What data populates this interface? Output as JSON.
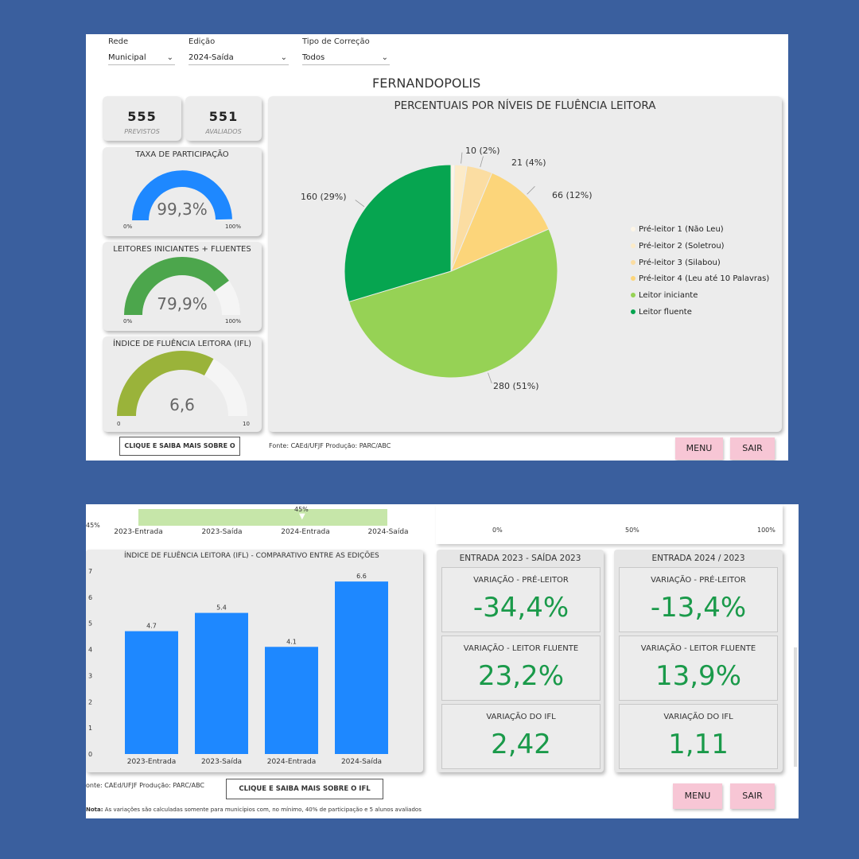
{
  "filters": [
    {
      "label": "Rede",
      "value": "Municipal"
    },
    {
      "label": "Edição",
      "value": "2024-Saída"
    },
    {
      "label": "Tipo de Correção",
      "value": "Todos"
    }
  ],
  "city": "FERNANDOPOLIS",
  "stats": {
    "previstos_value": "555",
    "previstos_label": "PREVISTOS",
    "avaliados_value": "551",
    "avaliados_label": "AVALIADOS"
  },
  "gauges": [
    {
      "title": "TAXA DE PARTICIPAÇÃO",
      "value_text": "99,3%",
      "fraction": 0.993,
      "min": "0%",
      "max": "100%",
      "color": "#1E88FF"
    },
    {
      "title": "LEITORES INICIANTES + FLUENTES",
      "value_text": "79,9%",
      "fraction": 0.799,
      "min": "0%",
      "max": "100%",
      "color": "#4CA64C"
    },
    {
      "title": "ÍNDICE DE FLUÊNCIA LEITORA (IFL)",
      "value_text": "6,6",
      "fraction": 0.66,
      "min": "0",
      "max": "10",
      "color": "#9AB33A"
    }
  ],
  "ifl_button_1": "CLIQUE E SAIBA MAIS SOBRE O IFL",
  "source_1": "Fonte: CAEd/UFJF  Produção: PARC/ABC",
  "menu_label": "MENU",
  "sair_label": "SAIR",
  "chart_data": [
    {
      "type": "pie",
      "title": "PERCENTUAIS POR NÍVEIS DE FLUÊNCIA LEITORA",
      "categories": [
        "Pré-leitor 1 (Não Leu)",
        "Pré-leitor 2 (Soletrou)",
        "Pré-leitor 3 (Silabou)",
        "Pré-leitor 4 (Leu até 10 Palavras)",
        "Leitor iniciante",
        "Leitor fluente"
      ],
      "values": [
        3,
        10,
        21,
        66,
        280,
        160
      ],
      "labels": [
        "",
        "10 (2%)",
        "21 (4%)",
        "66 (12%)",
        "280 (51%)",
        "160 (29%)"
      ],
      "colors": [
        "#FDF5E6",
        "#FCEBC8",
        "#FBDDA2",
        "#FCD57A",
        "#96D255",
        "#06A550"
      ],
      "legend_position": "right"
    },
    {
      "type": "bar",
      "title": "ÍNDICE DE FLUÊNCIA LEITORA (IFL) - COMPARATIVO ENTRE AS EDIÇÕES",
      "categories": [
        "2023-Entrada",
        "2023-Saída",
        "2024-Entrada",
        "2024-Saída"
      ],
      "values": [
        4.7,
        5.4,
        4.1,
        6.6
      ],
      "value_labels": [
        "4.7",
        "5.4",
        "4.1",
        "6.6"
      ],
      "ylim": [
        0,
        7
      ],
      "yticks": [
        "0",
        "1",
        "2",
        "3",
        "4",
        "5",
        "6",
        "7"
      ],
      "color": "#1E88FF",
      "grid": false
    }
  ],
  "partial_top": {
    "left_axis_label": "45%",
    "band_label": "45%",
    "categories": [
      "2023-Entrada",
      "2023-Saída",
      "2024-Entrada",
      "2024-Saída"
    ],
    "right_ticks": [
      "0%",
      "50%",
      "100%"
    ]
  },
  "variation_panels": [
    {
      "header": "ENTRADA 2023 - SAÍDA 2023",
      "items": [
        {
          "title": "VARIAÇÃO - PRÉ-LEITOR",
          "value": "-34,4%"
        },
        {
          "title": "VARIAÇÃO - LEITOR FLUENTE",
          "value": "23,2%"
        },
        {
          "title": "VARIAÇÃO DO IFL",
          "value": "2,42"
        }
      ]
    },
    {
      "header": "ENTRADA 2024 / 2023",
      "items": [
        {
          "title": "VARIAÇÃO - PRÉ-LEITOR",
          "value": "-13,4%"
        },
        {
          "title": "VARIAÇÃO - LEITOR FLUENTE",
          "value": "13,9%"
        },
        {
          "title": "VARIAÇÃO DO IFL",
          "value": "1,11"
        }
      ]
    }
  ],
  "source_2": "onte: CAEd/UFJF  Produção: PARC/ABC",
  "ifl_button_2": "CLIQUE E SAIBA MAIS SOBRE O IFL",
  "note_label": "Nota:",
  "note_text": "As variações são calculadas somente para municípios com, no mínimo, 40% de participação e 5 alunos avaliados"
}
